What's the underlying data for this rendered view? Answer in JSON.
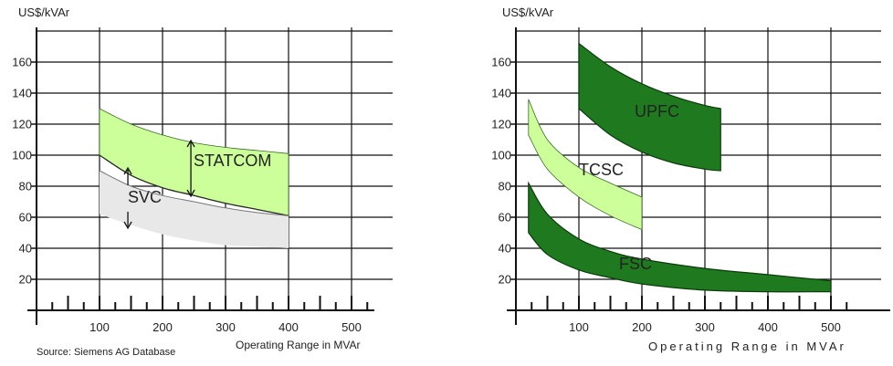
{
  "source_note": "Source: Siemens AG Database",
  "chart_data": [
    {
      "type": "area",
      "ylabel": "US$/kVAr",
      "xlabel": "Operating Range in MVAr",
      "xlim": [
        0,
        500
      ],
      "ylim": [
        0,
        180
      ],
      "x_ticks": [
        100,
        200,
        300,
        400,
        500
      ],
      "y_ticks": [
        20,
        40,
        60,
        80,
        100,
        120,
        140,
        160
      ],
      "grid": true,
      "series": [
        {
          "name": "SVC",
          "color": "#e8e8e8",
          "x": [
            100,
            150,
            200,
            250,
            300,
            350,
            400
          ],
          "upper": [
            90,
            80,
            74,
            70,
            66,
            63,
            61
          ],
          "lower": [
            62,
            55,
            49,
            45,
            42,
            41,
            40
          ]
        },
        {
          "name": "STATCOM",
          "color": "#ccff99",
          "x": [
            100,
            150,
            200,
            250,
            300,
            350,
            400
          ],
          "upper": [
            130,
            120,
            113,
            108,
            105,
            103,
            101
          ],
          "lower": [
            100,
            87,
            79,
            74,
            69,
            65,
            61
          ]
        }
      ]
    },
    {
      "type": "area",
      "ylabel": "US$/kVAr",
      "xlabel": "Operating Range in MVAr",
      "xlim": [
        0,
        500
      ],
      "ylim": [
        0,
        180
      ],
      "x_ticks": [
        100,
        200,
        300,
        400,
        500
      ],
      "y_ticks": [
        20,
        40,
        60,
        80,
        100,
        120,
        140,
        160
      ],
      "grid": true,
      "series": [
        {
          "name": "UPFC",
          "color": "#1f7a1f",
          "x": [
            100,
            150,
            200,
            250,
            300,
            325
          ],
          "upper": [
            172,
            157,
            146,
            138,
            132,
            130
          ],
          "lower": [
            130,
            113,
            102,
            95,
            91,
            90
          ]
        },
        {
          "name": "TCSC",
          "color": "#ccff99",
          "x": [
            20,
            50,
            100,
            150,
            200
          ],
          "upper": [
            136,
            110,
            92,
            82,
            73
          ],
          "lower": [
            113,
            91,
            73,
            61,
            52
          ]
        },
        {
          "name": "FSC",
          "color": "#1f7a1f",
          "x": [
            20,
            50,
            100,
            150,
            200,
            300,
            400,
            500
          ],
          "upper": [
            82,
            62,
            46,
            38,
            33,
            27,
            23,
            19
          ],
          "lower": [
            50,
            36,
            26,
            21,
            17,
            13,
            12,
            12
          ]
        }
      ]
    }
  ]
}
